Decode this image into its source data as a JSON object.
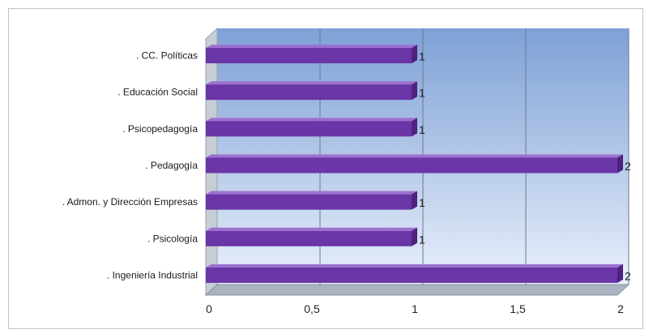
{
  "chart_data": {
    "type": "bar",
    "orientation": "horizontal",
    "style": "3d",
    "categories": [
      ". CC. Políticas",
      ". Educación Social",
      ". Psicopedagogía",
      ". Pedagogía",
      ". Admon. y Dirección Empresas",
      ". Psicología",
      ". Ingeniería Industrial"
    ],
    "values": [
      1,
      1,
      1,
      2,
      1,
      1,
      2
    ],
    "data_labels": [
      "1",
      "1",
      "1",
      "2",
      "1",
      "1",
      "2"
    ],
    "xlim": [
      0,
      2
    ],
    "x_ticks": [
      0,
      0.5,
      1,
      1.5,
      2
    ],
    "x_tick_labels": [
      "0",
      "0,5",
      "1",
      "1,5",
      "2"
    ],
    "title": "",
    "xlabel": "",
    "ylabel": "",
    "grid": true,
    "legend": "none",
    "colors": {
      "bar_front": "#6a35a6",
      "bar_top": "#9b71cf",
      "bar_end": "#4d2280",
      "plot_bg_top": "#7ea0d6",
      "plot_bg_bottom": "#e9f0fb",
      "side_wall": "#c7cdd5",
      "floor": "#aab4c0",
      "gridline": "#6c7a8c"
    }
  }
}
